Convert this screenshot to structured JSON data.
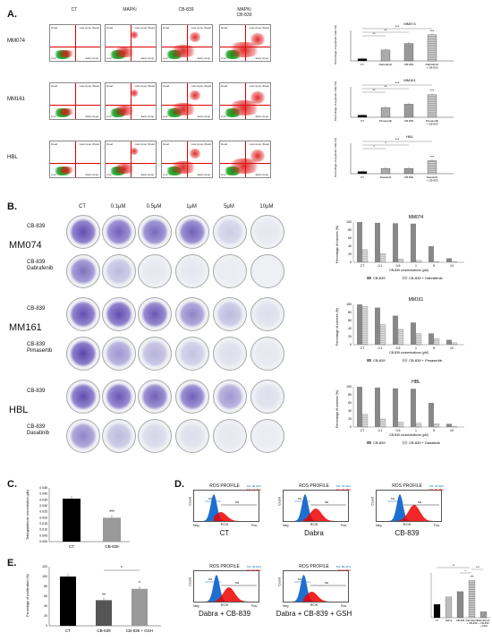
{
  "panelA": {
    "letter": "A.",
    "columns": [
      "CT",
      "MAPKi",
      "CB-839",
      "MAPKi\nCB-839"
    ],
    "rows": [
      "MM074",
      "MM161",
      "HBL"
    ],
    "flow_title": "APOPTOSIS PROFILE",
    "quadrants": [
      "Dead",
      "Late Apop./Dead",
      "Live",
      "Early Apop."
    ],
    "xaxis": "ANNEXIN V",
    "yaxis": "VIABILITY",
    "charts": [
      {
        "title": "MM074",
        "categories": [
          "CT",
          "Dabrafenib",
          "CB-839",
          "Dabrafenib + CB-839"
        ],
        "values": [
          5,
          25,
          40,
          60
        ],
        "sig": [
          "**",
          "**",
          "***"
        ]
      },
      {
        "title": "MM161",
        "categories": [
          "CT",
          "Pimasertib",
          "CB-839",
          "Pimasertib + CB-839"
        ],
        "values": [
          5,
          22,
          30,
          52
        ],
        "sig": [
          "**",
          "**",
          "***"
        ]
      },
      {
        "title": "HBL",
        "categories": [
          "CT",
          "Dasatinib",
          "CB-839",
          "Dasatinib + CB-839"
        ],
        "values": [
          5,
          12,
          12,
          30
        ],
        "sig": [
          "*",
          "*",
          "***"
        ]
      }
    ],
    "ylabel": "Percentage of apoptotic cells (%)"
  },
  "panelB": {
    "letter": "B.",
    "columns": [
      "CT",
      "0.1μM",
      "0.5μM",
      "1μM",
      "5μM",
      "10μM"
    ],
    "groups": [
      {
        "name": "MM074",
        "row1": "CB-839",
        "row2": "CB-839\nDabrafenib"
      },
      {
        "name": "MM161",
        "row1": "CB-839",
        "row2": "CB-839\nPimasertib"
      },
      {
        "name": "HBL",
        "row1": "CB-839",
        "row2": "CB-839\nDasatinib"
      }
    ],
    "charts": [
      {
        "title": "MM074",
        "legend": [
          "CB-839",
          "CB-839 + Dabrafenib"
        ],
        "categories": [
          "CT",
          "0.1",
          "0.5",
          "1",
          "5",
          "10"
        ],
        "s1": [
          100,
          98,
          97,
          96,
          40,
          10
        ],
        "s2": [
          32,
          22,
          8,
          5,
          2,
          2
        ],
        "ylabel": "Percentage of colonies (%)",
        "xlabel": "CB-839 concentrations (μM)"
      },
      {
        "title": "MM161",
        "legend": [
          "CB-839",
          "CB-839 + Pimasertib"
        ],
        "categories": [
          "CT",
          "0.1",
          "0.5",
          "1",
          "5",
          "10"
        ],
        "s1": [
          100,
          92,
          72,
          55,
          28,
          12
        ],
        "s2": [
          95,
          50,
          38,
          28,
          15,
          5
        ],
        "ylabel": "Percentage of colonies (%)",
        "xlabel": "CB-839 concentrations (μM)"
      },
      {
        "title": "HBL",
        "legend": [
          "CB-839",
          "CB-839 + Dasatinib"
        ],
        "categories": [
          "CT",
          "0.1",
          "0.5",
          "1",
          "5",
          "10"
        ],
        "s1": [
          100,
          98,
          96,
          95,
          60,
          8
        ],
        "s2": [
          32,
          20,
          12,
          10,
          8,
          2
        ],
        "ylabel": "Percentage of colonies (%)",
        "xlabel": "CB-839 concentrations (μM)"
      }
    ]
  },
  "panelC": {
    "letter": "C.",
    "categories": [
      "CT",
      "CB-839"
    ],
    "values": [
      0.036,
      0.02
    ],
    "ylabel": "Total glutathione concentration (μM)",
    "yticks": [
      "0.045",
      "0.040",
      "0.035",
      "0.030",
      "0.025",
      "0.020",
      "0.015",
      "0.010",
      "0.005",
      "0.000"
    ],
    "sig": "***"
  },
  "panelD": {
    "letter": "D.",
    "title": "ROS PROFILE",
    "plots": [
      {
        "caption": "CT",
        "m1": "M1: 82.63%",
        "m2": "M2: 17.37%"
      },
      {
        "caption": "Dabra",
        "m1": "M1: 70.02%",
        "m2": "M2: 29.98%"
      },
      {
        "caption": "CB-839",
        "m1": "M1: 39.52%",
        "m2": "M2: 60.48%"
      },
      {
        "caption": "Dabra + CB-839",
        "m1": "M1: 48.04%",
        "m2": "M2: 51.96%"
      },
      {
        "caption": "Dabra + CB-839 + GSH",
        "m1": "M1: 89.01%",
        "m2": "M2: 9.99%"
      }
    ],
    "xlabel": "ROS",
    "ylabel": "Count",
    "ticks": [
      "Neg.",
      "Pos."
    ],
    "bar_chart": {
      "categories": [
        "CT",
        "Dabra",
        "CB-839",
        "Dabrafenib + CB-839",
        "Dabrafenib + CB-839 + GSH"
      ],
      "values": [
        18,
        28,
        35,
        50,
        8
      ],
      "sig": [
        "**",
        "*",
        "***",
        "***"
      ]
    }
  },
  "panelE": {
    "letter": "E.",
    "categories": [
      "CT",
      "CB-839",
      "CB-839 + GSH"
    ],
    "values": [
      100,
      52,
      75
    ],
    "ylabel": "Percentage of proliferation (%)",
    "yticks": [
      "120",
      "100",
      "80",
      "60",
      "40",
      "20",
      "0"
    ],
    "sig": [
      "**",
      "*",
      "*"
    ]
  }
}
